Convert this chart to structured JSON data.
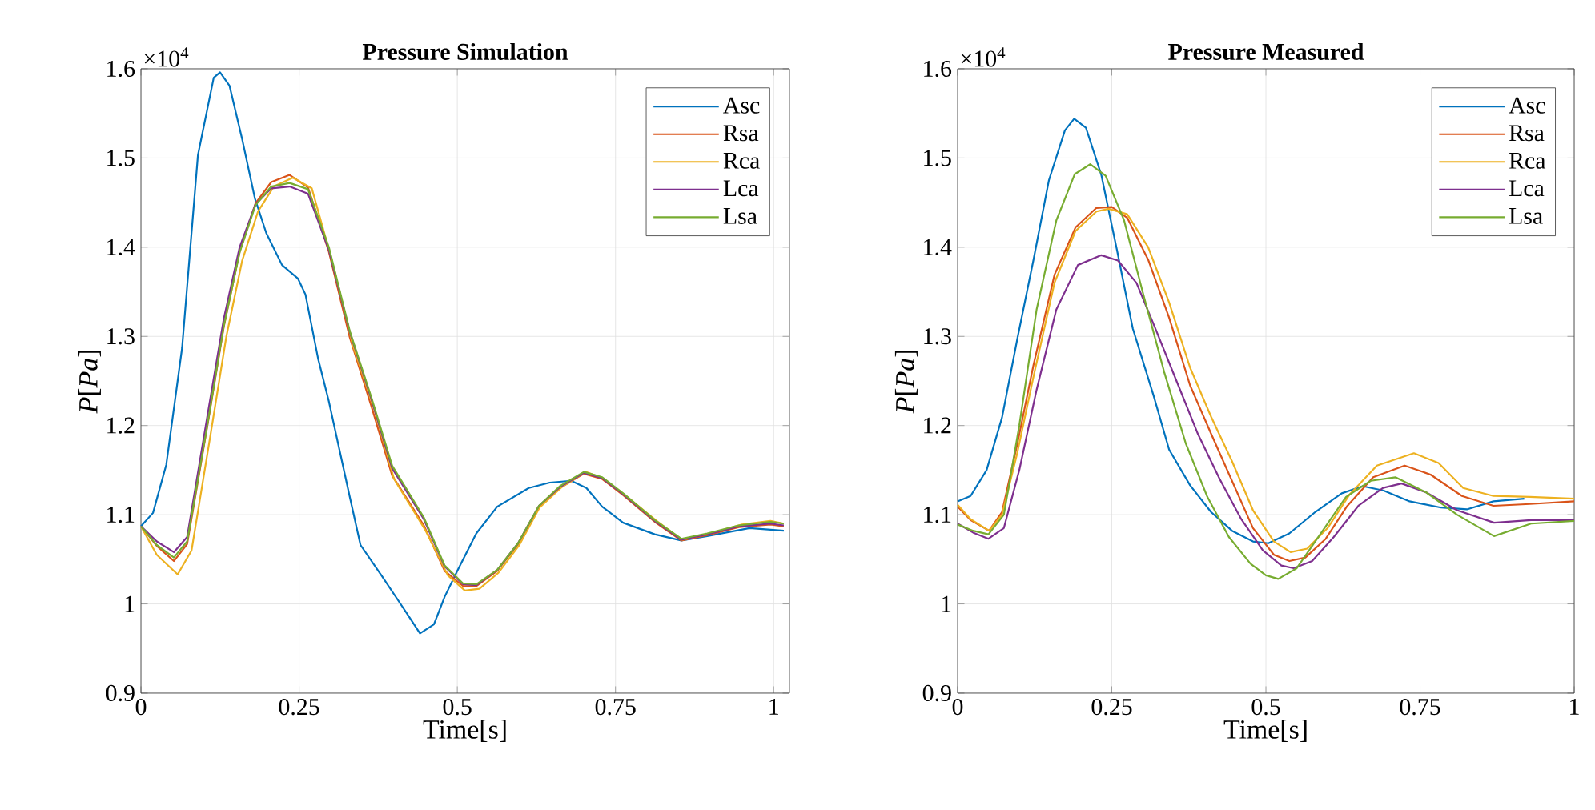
{
  "chart_data": [
    {
      "type": "line",
      "title": "Pressure Simulation",
      "xlabel": "Time[s]",
      "ylabel": "*P*[*Pa*]",
      "annotations": [
        "×10$^{4}$"
      ],
      "xlim": [
        0,
        1.025
      ],
      "ylim": [
        0.9,
        1.6
      ],
      "xticks": [
        0,
        0.25,
        0.5,
        0.75,
        1
      ],
      "yticks": [
        0.9,
        1,
        1.1,
        1.2,
        1.3,
        1.4,
        1.5,
        1.6
      ],
      "grid": true,
      "legend": "top right",
      "line_style": "solid",
      "marker": "none",
      "series": [
        {
          "name": "Asc",
          "color": "#0072bd",
          "x": [
            0,
            0.019,
            0.04,
            0.065,
            0.09,
            0.115,
            0.125,
            0.14,
            0.16,
            0.18,
            0.198,
            0.223,
            0.248,
            0.26,
            0.28,
            0.297,
            0.33,
            0.347,
            0.38,
            0.414,
            0.441,
            0.463,
            0.48,
            0.5,
            0.53,
            0.563,
            0.613,
            0.646,
            0.68,
            0.704,
            0.729,
            0.762,
            0.812,
            0.854,
            0.895,
            0.962,
            1.016
          ],
          "values": [
            1.087,
            1.102,
            1.156,
            1.287,
            1.503,
            1.59,
            1.596,
            1.581,
            1.521,
            1.455,
            1.416,
            1.38,
            1.365,
            1.347,
            1.275,
            1.227,
            1.12,
            1.066,
            1.032,
            0.996,
            0.967,
            0.977,
            1.008,
            1.037,
            1.079,
            1.109,
            1.13,
            1.136,
            1.138,
            1.13,
            1.109,
            1.091,
            1.078,
            1.071,
            1.076,
            1.085,
            1.082
          ]
        },
        {
          "name": "Rsa",
          "color": "#d95319",
          "x": [
            0,
            0.025,
            0.052,
            0.073,
            0.106,
            0.131,
            0.156,
            0.181,
            0.206,
            0.235,
            0.264,
            0.297,
            0.33,
            0.364,
            0.397,
            0.447,
            0.48,
            0.509,
            0.53,
            0.563,
            0.596,
            0.629,
            0.662,
            0.7,
            0.729,
            0.762,
            0.812,
            0.854,
            0.895,
            0.945,
            0.995,
            1.016
          ],
          "values": [
            1.087,
            1.065,
            1.048,
            1.067,
            1.204,
            1.311,
            1.395,
            1.449,
            1.473,
            1.481,
            1.467,
            1.395,
            1.299,
            1.222,
            1.144,
            1.088,
            1.037,
            1.02,
            1.02,
            1.037,
            1.067,
            1.109,
            1.13,
            1.146,
            1.14,
            1.122,
            1.092,
            1.071,
            1.077,
            1.086,
            1.089,
            1.087
          ]
        },
        {
          "name": "Rca",
          "color": "#edb120",
          "x": [
            0,
            0.025,
            0.058,
            0.08,
            0.11,
            0.135,
            0.16,
            0.185,
            0.21,
            0.24,
            0.27,
            0.3,
            0.335,
            0.37,
            0.4,
            0.45,
            0.485,
            0.512,
            0.535,
            0.565,
            0.598,
            0.63,
            0.665,
            0.703,
            0.73,
            0.765,
            0.815,
            0.855,
            0.9,
            0.95,
            0.995,
            1.016
          ],
          "values": [
            1.087,
            1.055,
            1.033,
            1.06,
            1.19,
            1.3,
            1.385,
            1.44,
            1.468,
            1.478,
            1.466,
            1.39,
            1.29,
            1.215,
            1.14,
            1.082,
            1.032,
            1.015,
            1.017,
            1.035,
            1.066,
            1.108,
            1.131,
            1.148,
            1.141,
            1.122,
            1.093,
            1.072,
            1.079,
            1.089,
            1.093,
            1.09
          ]
        },
        {
          "name": "Lca",
          "color": "#7e2f8e",
          "x": [
            0,
            0.025,
            0.052,
            0.073,
            0.106,
            0.131,
            0.156,
            0.181,
            0.206,
            0.235,
            0.264,
            0.297,
            0.33,
            0.364,
            0.397,
            0.447,
            0.48,
            0.509,
            0.53,
            0.563,
            0.596,
            0.629,
            0.662,
            0.7,
            0.729,
            0.762,
            0.812,
            0.854,
            0.895,
            0.945,
            0.995,
            1.016
          ],
          "values": [
            1.087,
            1.07,
            1.058,
            1.075,
            1.215,
            1.32,
            1.4,
            1.448,
            1.466,
            1.468,
            1.46,
            1.397,
            1.305,
            1.23,
            1.152,
            1.095,
            1.042,
            1.022,
            1.021,
            1.038,
            1.068,
            1.11,
            1.131,
            1.147,
            1.141,
            1.123,
            1.093,
            1.072,
            1.078,
            1.087,
            1.09,
            1.088
          ]
        },
        {
          "name": "Lsa",
          "color": "#77ac30",
          "x": [
            0,
            0.025,
            0.052,
            0.073,
            0.106,
            0.131,
            0.156,
            0.181,
            0.206,
            0.235,
            0.264,
            0.297,
            0.33,
            0.364,
            0.397,
            0.447,
            0.48,
            0.509,
            0.53,
            0.563,
            0.596,
            0.629,
            0.662,
            0.7,
            0.729,
            0.762,
            0.812,
            0.854,
            0.895,
            0.945,
            0.995,
            1.016
          ],
          "values": [
            1.087,
            1.066,
            1.052,
            1.07,
            1.205,
            1.312,
            1.394,
            1.447,
            1.468,
            1.472,
            1.465,
            1.4,
            1.306,
            1.232,
            1.155,
            1.097,
            1.043,
            1.023,
            1.022,
            1.038,
            1.068,
            1.11,
            1.132,
            1.148,
            1.142,
            1.124,
            1.094,
            1.073,
            1.079,
            1.088,
            1.092,
            1.09
          ]
        }
      ]
    },
    {
      "type": "line",
      "title": "Pressure Measured",
      "xlabel": "Time[s]",
      "ylabel": "*P*[*Pa*]",
      "annotations": [
        "×10$^{4}$"
      ],
      "xlim": [
        0,
        1
      ],
      "ylim": [
        0.9,
        1.6
      ],
      "xticks": [
        0,
        0.25,
        0.5,
        0.75,
        1
      ],
      "yticks": [
        0.9,
        1,
        1.1,
        1.2,
        1.3,
        1.4,
        1.5,
        1.6
      ],
      "grid": true,
      "legend": "top right",
      "line_style": "solid",
      "marker": "none",
      "series": [
        {
          "name": "Asc",
          "color": "#0072bd",
          "x": [
            0,
            0.021,
            0.047,
            0.072,
            0.097,
            0.123,
            0.148,
            0.174,
            0.189,
            0.208,
            0.233,
            0.258,
            0.284,
            0.318,
            0.343,
            0.377,
            0.411,
            0.445,
            0.479,
            0.504,
            0.538,
            0.58,
            0.623,
            0.657,
            0.691,
            0.733,
            0.784,
            0.826,
            0.869,
            0.919
          ],
          "values": [
            1.115,
            1.121,
            1.15,
            1.209,
            1.298,
            1.386,
            1.475,
            1.531,
            1.544,
            1.534,
            1.481,
            1.398,
            1.309,
            1.233,
            1.173,
            1.133,
            1.103,
            1.082,
            1.07,
            1.068,
            1.079,
            1.103,
            1.124,
            1.132,
            1.127,
            1.115,
            1.108,
            1.106,
            1.115,
            1.118
          ]
        },
        {
          "name": "Rsa",
          "color": "#d95319",
          "x": [
            0,
            0.021,
            0.051,
            0.072,
            0.097,
            0.123,
            0.157,
            0.191,
            0.225,
            0.25,
            0.275,
            0.309,
            0.343,
            0.377,
            0.411,
            0.445,
            0.479,
            0.513,
            0.538,
            0.564,
            0.597,
            0.631,
            0.674,
            0.725,
            0.767,
            0.818,
            0.869,
            0.928,
            1.0
          ],
          "values": [
            1.109,
            1.094,
            1.082,
            1.103,
            1.18,
            1.268,
            1.369,
            1.422,
            1.444,
            1.445,
            1.433,
            1.386,
            1.321,
            1.245,
            1.191,
            1.138,
            1.085,
            1.055,
            1.048,
            1.052,
            1.073,
            1.109,
            1.142,
            1.155,
            1.145,
            1.121,
            1.11,
            1.112,
            1.115
          ]
        },
        {
          "name": "Rca",
          "color": "#edb120",
          "x": [
            0,
            0.021,
            0.051,
            0.072,
            0.097,
            0.123,
            0.157,
            0.191,
            0.225,
            0.245,
            0.275,
            0.309,
            0.343,
            0.377,
            0.411,
            0.445,
            0.479,
            0.513,
            0.54,
            0.567,
            0.6,
            0.635,
            0.68,
            0.74,
            0.78,
            0.82,
            0.869,
            0.928,
            1.0
          ],
          "values": [
            1.111,
            1.095,
            1.082,
            1.1,
            1.17,
            1.255,
            1.36,
            1.418,
            1.44,
            1.443,
            1.437,
            1.4,
            1.338,
            1.265,
            1.21,
            1.16,
            1.105,
            1.07,
            1.058,
            1.062,
            1.085,
            1.122,
            1.155,
            1.169,
            1.158,
            1.13,
            1.121,
            1.12,
            1.118
          ]
        },
        {
          "name": "Lca",
          "color": "#7e2f8e",
          "x": [
            0,
            0.025,
            0.05,
            0.075,
            0.1,
            0.128,
            0.16,
            0.195,
            0.233,
            0.26,
            0.29,
            0.32,
            0.355,
            0.39,
            0.425,
            0.46,
            0.495,
            0.525,
            0.545,
            0.575,
            0.61,
            0.65,
            0.69,
            0.72,
            0.76,
            0.81,
            0.87,
            0.93,
            1.0
          ],
          "values": [
            1.09,
            1.08,
            1.073,
            1.085,
            1.15,
            1.24,
            1.33,
            1.38,
            1.391,
            1.385,
            1.36,
            1.31,
            1.25,
            1.19,
            1.14,
            1.095,
            1.06,
            1.043,
            1.04,
            1.048,
            1.075,
            1.11,
            1.13,
            1.135,
            1.125,
            1.105,
            1.091,
            1.094,
            1.094
          ]
        },
        {
          "name": "Lsa",
          "color": "#77ac30",
          "x": [
            0,
            0.025,
            0.05,
            0.075,
            0.1,
            0.128,
            0.16,
            0.19,
            0.215,
            0.24,
            0.27,
            0.3,
            0.335,
            0.37,
            0.405,
            0.44,
            0.475,
            0.5,
            0.52,
            0.55,
            0.59,
            0.63,
            0.67,
            0.71,
            0.76,
            0.81,
            0.87,
            0.93,
            1.0
          ],
          "values": [
            1.089,
            1.082,
            1.078,
            1.1,
            1.2,
            1.33,
            1.43,
            1.482,
            1.493,
            1.48,
            1.43,
            1.35,
            1.26,
            1.18,
            1.12,
            1.075,
            1.045,
            1.032,
            1.028,
            1.04,
            1.08,
            1.12,
            1.138,
            1.142,
            1.125,
            1.1,
            1.076,
            1.09,
            1.093
          ]
        }
      ]
    }
  ]
}
